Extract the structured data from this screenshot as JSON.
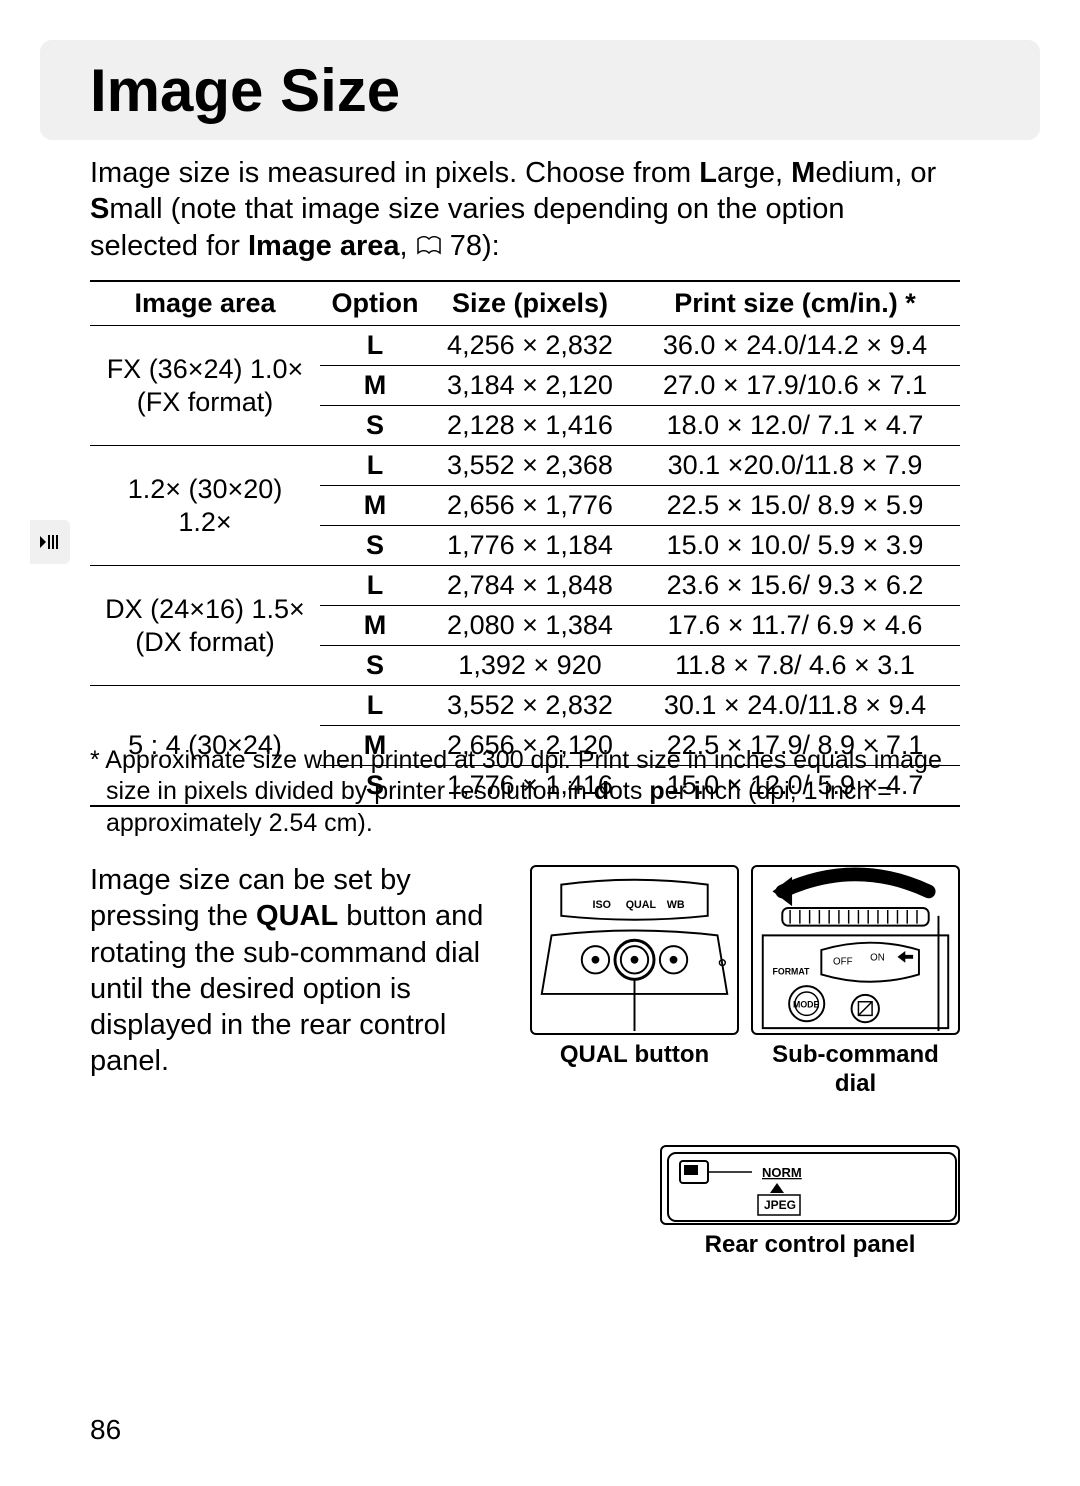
{
  "title": "Image Size",
  "intro_parts": {
    "p1": "Image size is measured in pixels.  Choose from ",
    "L": "L",
    "arge": "arge, ",
    "M": "M",
    "edium": "edium, or ",
    "S": "S",
    "mall": "mall (note that image size varies depending on the option selected for ",
    "ia": "Image area",
    "comma": ", ",
    "ref": "78):"
  },
  "table": {
    "headers": {
      "area": "Image area",
      "option": "Option",
      "size": "Size (pixels)",
      "print": "Print size (cm/in.) *"
    },
    "groups": [
      {
        "area": "FX (36×24) 1.0×\n(FX format)",
        "rows": [
          {
            "opt": "L",
            "size": "4,256 × 2,832",
            "print": "36.0 × 24.0/14.2 × 9.4"
          },
          {
            "opt": "M",
            "size": "3,184 × 2,120",
            "print": "27.0 × 17.9/10.6 × 7.1"
          },
          {
            "opt": "S",
            "size": "2,128 × 1,416",
            "print": "18.0 × 12.0/  7.1 × 4.7"
          }
        ]
      },
      {
        "area": "1.2× (30×20)\n1.2×",
        "rows": [
          {
            "opt": "L",
            "size": "3,552 × 2,368",
            "print": "30.1 ×20.0/11.8 × 7.9"
          },
          {
            "opt": "M",
            "size": "2,656 × 1,776",
            "print": "22.5 × 15.0/  8.9 × 5.9"
          },
          {
            "opt": "S",
            "size": "1,776 × 1,184",
            "print": "15.0 × 10.0/  5.9 × 3.9"
          }
        ]
      },
      {
        "area": "DX (24×16) 1.5×\n(DX format)",
        "rows": [
          {
            "opt": "L",
            "size": "2,784 × 1,848",
            "print": "23.6 × 15.6/  9.3 × 6.2"
          },
          {
            "opt": "M",
            "size": "2,080 × 1,384",
            "print": "17.6 × 11.7/  6.9 × 4.6"
          },
          {
            "opt": "S",
            "size": "1,392 ×   920",
            "print": "11.8 ×   7.8/  4.6 × 3.1"
          }
        ]
      },
      {
        "area": "5 : 4 (30×24)",
        "rows": [
          {
            "opt": "L",
            "size": "3,552 × 2,832",
            "print": "30.1 × 24.0/11.8 × 9.4"
          },
          {
            "opt": "M",
            "size": "2,656 × 2,120",
            "print": "22.5 × 17.9/  8.9 × 7.1"
          },
          {
            "opt": "S",
            "size": "1,776 × 1,416",
            "print": "15.0 × 12.0/  5.9 × 4.7"
          }
        ]
      }
    ]
  },
  "footnote": {
    "p1": "* Approximate size when printed at 300 dpi. Print size in inches equals image size in pixels divided by printer resolution in ",
    "d": "d",
    "ots": "ots ",
    "p": "p",
    "er": "er ",
    "i": "i",
    "nch": "nch (dpi; 1 inch = approximately 2.54 cm)."
  },
  "para2": {
    "p1": "Image size can be set by pressing the ",
    "qual": "QUAL",
    "p2": " button and rotating the sub-command dial until the desired option is displayed in the rear control panel."
  },
  "captions": {
    "qual_button": "QUAL button",
    "sub_dial": "Sub-command dial",
    "rear_panel": "Rear control panel"
  },
  "camera_labels": {
    "iso": "ISO",
    "qual": "QUAL",
    "wb": "WB",
    "mode": "MODE",
    "format": "FORMAT",
    "off": "OFF",
    "on": "ON",
    "norm": "NORM",
    "jpeg": "JPEG"
  },
  "page_number": "86",
  "colors": {
    "band": "#f0f0f0",
    "text": "#000000",
    "bg": "#ffffff"
  }
}
